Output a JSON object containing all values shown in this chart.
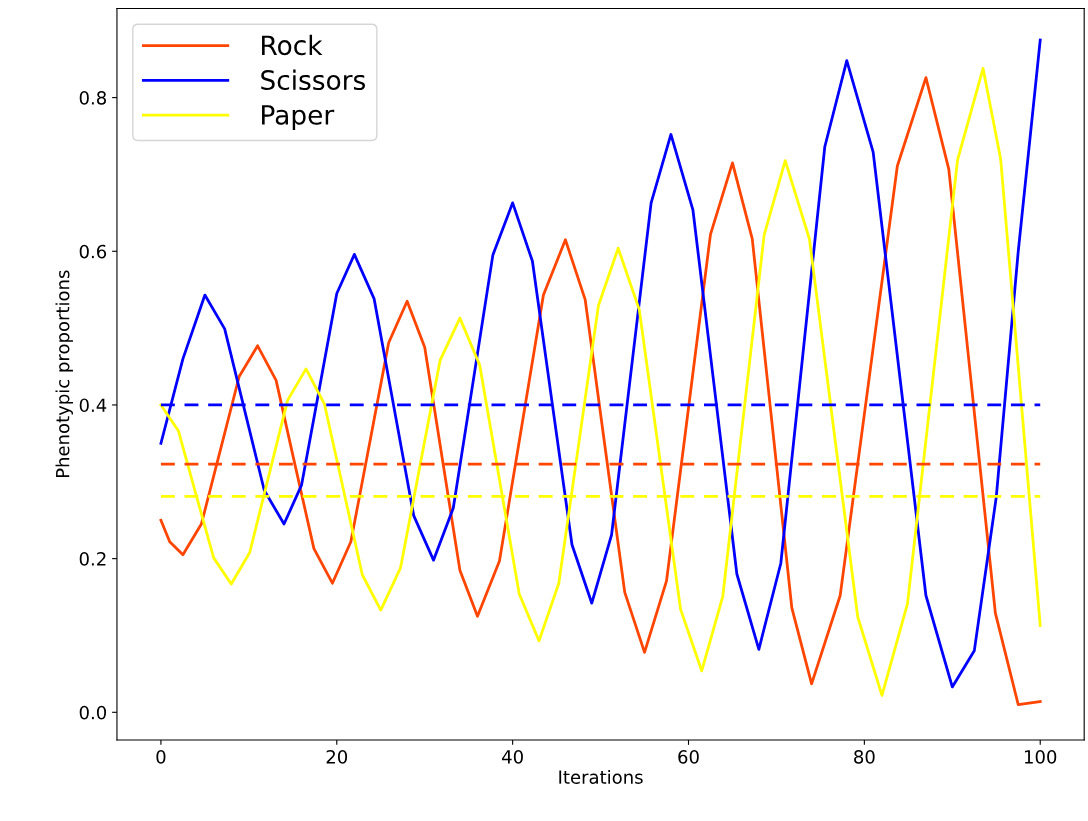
{
  "chart_data": {
    "type": "line",
    "xlabel": "Iterations",
    "ylabel": "Phenotypic proportions",
    "xlim": [
      -5,
      105
    ],
    "xticks": [
      0,
      20,
      40,
      60,
      80,
      100
    ],
    "ylim": [
      -0.036,
      0.916
    ],
    "yticks": [
      {
        "value": 0,
        "label": "0.0"
      },
      {
        "value": 0.2,
        "label": "0.2"
      },
      {
        "value": 0.4,
        "label": "0.4"
      },
      {
        "value": 0.6,
        "label": "0.6"
      },
      {
        "value": 0.8,
        "label": "0.8"
      }
    ],
    "grid": false,
    "legend": "top left",
    "series": [
      {
        "name": "Rock",
        "color": "#ff4500",
        "line_style": "solid",
        "x": [
          0,
          1,
          2.5,
          4.6,
          6.75,
          8.9,
          11,
          13.1,
          15.25,
          17.4,
          19.5,
          21.6,
          23.75,
          25.9,
          28,
          30,
          32,
          34,
          36,
          38.5,
          41,
          43.5,
          46,
          48.25,
          50.5,
          52.75,
          55,
          57.5,
          60,
          62.5,
          65,
          67.25,
          69.5,
          71.75,
          74,
          77.25,
          80.5,
          83.75,
          87,
          89.6,
          92.25,
          94.9,
          97.5,
          100
        ],
        "values": [
          0.25,
          0.222,
          0.205,
          0.245,
          0.341,
          0.437,
          0.477,
          0.432,
          0.322,
          0.213,
          0.168,
          0.222,
          0.351,
          0.481,
          0.535,
          0.475,
          0.33,
          0.185,
          0.125,
          0.197,
          0.37,
          0.543,
          0.615,
          0.537,
          0.346,
          0.156,
          0.078,
          0.171,
          0.396,
          0.622,
          0.715,
          0.616,
          0.376,
          0.136,
          0.037,
          0.152,
          0.431,
          0.711,
          0.826,
          0.707,
          0.418,
          0.129,
          0.01,
          0.014
        ]
      },
      {
        "name": "Scissors",
        "color": "#0000ff",
        "line_style": "solid",
        "x": [
          0,
          2.5,
          5,
          7.25,
          9.5,
          11.75,
          14,
          16,
          18,
          20,
          22,
          24.25,
          26.5,
          28.75,
          31,
          33.25,
          35.5,
          37.75,
          40,
          42.25,
          44.5,
          46.75,
          49,
          51.25,
          53.5,
          55.75,
          58,
          60.5,
          63,
          65.5,
          68,
          70.5,
          73,
          75.5,
          78,
          81,
          84,
          87,
          90,
          92.5,
          95,
          97.5,
          100
        ],
        "values": [
          0.35,
          0.46,
          0.543,
          0.499,
          0.394,
          0.289,
          0.245,
          0.296,
          0.42,
          0.545,
          0.596,
          0.538,
          0.397,
          0.256,
          0.198,
          0.266,
          0.43,
          0.595,
          0.663,
          0.587,
          0.402,
          0.218,
          0.142,
          0.231,
          0.447,
          0.663,
          0.752,
          0.654,
          0.417,
          0.18,
          0.082,
          0.194,
          0.465,
          0.736,
          0.848,
          0.729,
          0.44,
          0.152,
          0.033,
          0.08,
          0.28,
          0.6,
          0.875
        ]
      },
      {
        "name": "Paper",
        "color": "#ffff00",
        "line_style": "solid",
        "x": [
          0,
          2,
          4,
          6,
          8,
          10.1,
          12.25,
          14.4,
          16.5,
          18.6,
          20.75,
          22.9,
          25,
          27.25,
          29.5,
          31.75,
          34,
          36.25,
          38.5,
          40.75,
          43,
          45.25,
          47.5,
          49.75,
          52,
          54.4,
          56.75,
          59.1,
          61.5,
          63.9,
          66.25,
          68.6,
          71,
          73.75,
          76.5,
          79.25,
          82,
          84.9,
          87.75,
          90.6,
          93.5,
          95.5,
          97.5,
          100
        ],
        "values": [
          0.4,
          0.366,
          0.283,
          0.201,
          0.167,
          0.208,
          0.307,
          0.406,
          0.447,
          0.401,
          0.29,
          0.179,
          0.133,
          0.188,
          0.323,
          0.458,
          0.513,
          0.452,
          0.303,
          0.154,
          0.093,
          0.168,
          0.348,
          0.529,
          0.604,
          0.524,
          0.329,
          0.134,
          0.054,
          0.151,
          0.386,
          0.621,
          0.718,
          0.616,
          0.37,
          0.124,
          0.022,
          0.141,
          0.43,
          0.719,
          0.838,
          0.72,
          0.45,
          0.113
        ]
      },
      {
        "color": "#0000ff",
        "line_style": "dashed",
        "x": [
          0,
          100
        ],
        "values": [
          0.4,
          0.4
        ]
      },
      {
        "color": "#ff4500",
        "line_style": "dashed",
        "x": [
          0,
          100
        ],
        "values": [
          0.323,
          0.323
        ]
      },
      {
        "color": "#ffff00",
        "line_style": "dashed",
        "x": [
          0,
          100
        ],
        "values": [
          0.281,
          0.281
        ]
      }
    ]
  }
}
